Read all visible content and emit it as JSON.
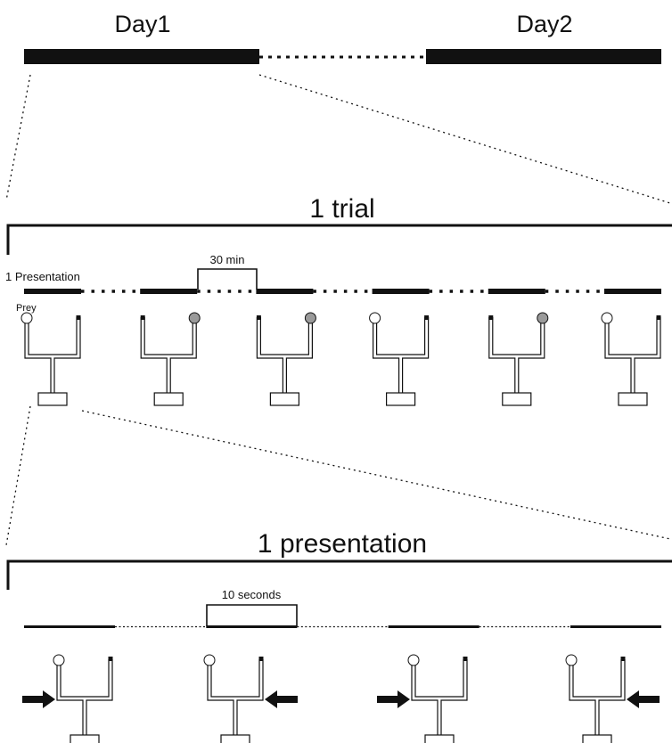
{
  "header": {
    "day1": "Day1",
    "day2": "Day2"
  },
  "trial": {
    "title": "1 trial",
    "presentation_label": "1 Presentation",
    "interval_label": "30 min",
    "prey_label": "Prey",
    "presentations": [
      {
        "target": "left",
        "state": "empty"
      },
      {
        "target": "right",
        "state": "filled"
      },
      {
        "target": "right",
        "state": "filled"
      },
      {
        "target": "left",
        "state": "empty"
      },
      {
        "target": "right",
        "state": "filled"
      },
      {
        "target": "left",
        "state": "empty"
      }
    ]
  },
  "presentation": {
    "title": "1 presentation",
    "interval_label": "10 seconds",
    "stimuli": [
      {
        "arrow": "from-left"
      },
      {
        "arrow": "from-right"
      },
      {
        "arrow": "from-left"
      },
      {
        "arrow": "from-right"
      }
    ]
  },
  "colors": {
    "ink": "#111111",
    "filled_circle": "#9a9a9a"
  }
}
